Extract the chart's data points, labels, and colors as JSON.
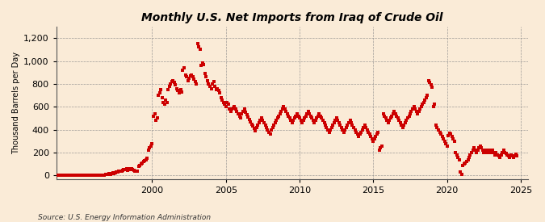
{
  "title": "Monthly U.S. Net Imports from Iraq of Crude Oil",
  "ylabel": "Thousand Barrels per Day",
  "source": "Source: U.S. Energy Information Administration",
  "background_color": "#faebd7",
  "marker_color": "#cc0000",
  "xlim": [
    1993.5,
    2025.5
  ],
  "ylim": [
    -30,
    1300
  ],
  "yticks": [
    0,
    200,
    400,
    600,
    800,
    1000,
    1200
  ],
  "xticks": [
    2000,
    2005,
    2010,
    2015,
    2020,
    2025
  ],
  "data": [
    [
      1993.08,
      0
    ],
    [
      1993.17,
      0
    ],
    [
      1993.25,
      0
    ],
    [
      1993.33,
      0
    ],
    [
      1993.42,
      0
    ],
    [
      1993.5,
      0
    ],
    [
      1993.58,
      0
    ],
    [
      1993.67,
      0
    ],
    [
      1993.75,
      0
    ],
    [
      1993.83,
      0
    ],
    [
      1993.92,
      0
    ],
    [
      1994.0,
      0
    ],
    [
      1994.08,
      0
    ],
    [
      1994.17,
      0
    ],
    [
      1994.25,
      0
    ],
    [
      1994.33,
      0
    ],
    [
      1994.42,
      0
    ],
    [
      1994.5,
      0
    ],
    [
      1994.58,
      0
    ],
    [
      1994.67,
      0
    ],
    [
      1994.75,
      0
    ],
    [
      1994.83,
      0
    ],
    [
      1994.92,
      0
    ],
    [
      1995.0,
      0
    ],
    [
      1995.08,
      0
    ],
    [
      1995.17,
      0
    ],
    [
      1995.25,
      0
    ],
    [
      1995.33,
      0
    ],
    [
      1995.42,
      0
    ],
    [
      1995.5,
      0
    ],
    [
      1995.58,
      0
    ],
    [
      1995.67,
      0
    ],
    [
      1995.75,
      0
    ],
    [
      1995.83,
      0
    ],
    [
      1995.92,
      0
    ],
    [
      1996.0,
      0
    ],
    [
      1996.08,
      0
    ],
    [
      1996.17,
      0
    ],
    [
      1996.25,
      0
    ],
    [
      1996.33,
      0
    ],
    [
      1996.42,
      0
    ],
    [
      1996.5,
      0
    ],
    [
      1996.58,
      0
    ],
    [
      1996.67,
      0
    ],
    [
      1996.75,
      5
    ],
    [
      1996.83,
      8
    ],
    [
      1996.92,
      10
    ],
    [
      1997.0,
      12
    ],
    [
      1997.08,
      15
    ],
    [
      1997.17,
      8
    ],
    [
      1997.25,
      20
    ],
    [
      1997.33,
      25
    ],
    [
      1997.42,
      18
    ],
    [
      1997.5,
      22
    ],
    [
      1997.58,
      30
    ],
    [
      1997.67,
      28
    ],
    [
      1997.75,
      35
    ],
    [
      1997.83,
      40
    ],
    [
      1997.92,
      38
    ],
    [
      1998.0,
      45
    ],
    [
      1998.08,
      50
    ],
    [
      1998.17,
      55
    ],
    [
      1998.25,
      60
    ],
    [
      1998.33,
      48
    ],
    [
      1998.42,
      52
    ],
    [
      1998.5,
      58
    ],
    [
      1998.58,
      62
    ],
    [
      1998.67,
      55
    ],
    [
      1998.75,
      48
    ],
    [
      1998.83,
      42
    ],
    [
      1998.92,
      38
    ],
    [
      1999.0,
      35
    ],
    [
      1999.08,
      80
    ],
    [
      1999.17,
      90
    ],
    [
      1999.25,
      100
    ],
    [
      1999.33,
      110
    ],
    [
      1999.42,
      120
    ],
    [
      1999.5,
      130
    ],
    [
      1999.58,
      140
    ],
    [
      1999.67,
      150
    ],
    [
      1999.75,
      220
    ],
    [
      1999.83,
      240
    ],
    [
      1999.92,
      260
    ],
    [
      2000.0,
      280
    ],
    [
      2000.08,
      520
    ],
    [
      2000.17,
      540
    ],
    [
      2000.25,
      480
    ],
    [
      2000.33,
      500
    ],
    [
      2000.42,
      700
    ],
    [
      2000.5,
      720
    ],
    [
      2000.58,
      750
    ],
    [
      2000.67,
      680
    ],
    [
      2000.75,
      640
    ],
    [
      2000.83,
      620
    ],
    [
      2000.92,
      660
    ],
    [
      2001.0,
      640
    ],
    [
      2001.08,
      750
    ],
    [
      2001.17,
      780
    ],
    [
      2001.25,
      800
    ],
    [
      2001.33,
      820
    ],
    [
      2001.42,
      830
    ],
    [
      2001.5,
      810
    ],
    [
      2001.58,
      790
    ],
    [
      2001.67,
      760
    ],
    [
      2001.75,
      740
    ],
    [
      2001.83,
      720
    ],
    [
      2001.92,
      750
    ],
    [
      2002.0,
      730
    ],
    [
      2002.08,
      920
    ],
    [
      2002.17,
      940
    ],
    [
      2002.25,
      880
    ],
    [
      2002.33,
      860
    ],
    [
      2002.42,
      830
    ],
    [
      2002.5,
      850
    ],
    [
      2002.58,
      870
    ],
    [
      2002.67,
      880
    ],
    [
      2002.75,
      860
    ],
    [
      2002.83,
      840
    ],
    [
      2002.92,
      820
    ],
    [
      2003.0,
      800
    ],
    [
      2003.08,
      1150
    ],
    [
      2003.17,
      1120
    ],
    [
      2003.25,
      1100
    ],
    [
      2003.33,
      960
    ],
    [
      2003.42,
      980
    ],
    [
      2003.5,
      970
    ],
    [
      2003.58,
      890
    ],
    [
      2003.67,
      860
    ],
    [
      2003.75,
      830
    ],
    [
      2003.83,
      800
    ],
    [
      2003.92,
      780
    ],
    [
      2004.0,
      760
    ],
    [
      2004.08,
      800
    ],
    [
      2004.17,
      820
    ],
    [
      2004.25,
      780
    ],
    [
      2004.33,
      750
    ],
    [
      2004.42,
      760
    ],
    [
      2004.5,
      740
    ],
    [
      2004.58,
      720
    ],
    [
      2004.67,
      680
    ],
    [
      2004.75,
      660
    ],
    [
      2004.83,
      640
    ],
    [
      2004.92,
      620
    ],
    [
      2005.0,
      600
    ],
    [
      2005.08,
      640
    ],
    [
      2005.17,
      620
    ],
    [
      2005.25,
      580
    ],
    [
      2005.33,
      560
    ],
    [
      2005.42,
      580
    ],
    [
      2005.5,
      590
    ],
    [
      2005.58,
      600
    ],
    [
      2005.67,
      580
    ],
    [
      2005.75,
      560
    ],
    [
      2005.83,
      540
    ],
    [
      2005.92,
      520
    ],
    [
      2006.0,
      500
    ],
    [
      2006.08,
      540
    ],
    [
      2006.17,
      560
    ],
    [
      2006.25,
      580
    ],
    [
      2006.33,
      550
    ],
    [
      2006.42,
      530
    ],
    [
      2006.5,
      510
    ],
    [
      2006.58,
      490
    ],
    [
      2006.67,
      470
    ],
    [
      2006.75,
      450
    ],
    [
      2006.83,
      430
    ],
    [
      2006.92,
      410
    ],
    [
      2007.0,
      390
    ],
    [
      2007.08,
      420
    ],
    [
      2007.17,
      440
    ],
    [
      2007.25,
      460
    ],
    [
      2007.33,
      480
    ],
    [
      2007.42,
      500
    ],
    [
      2007.5,
      480
    ],
    [
      2007.58,
      460
    ],
    [
      2007.67,
      440
    ],
    [
      2007.75,
      420
    ],
    [
      2007.83,
      400
    ],
    [
      2007.92,
      380
    ],
    [
      2008.0,
      360
    ],
    [
      2008.08,
      400
    ],
    [
      2008.17,
      420
    ],
    [
      2008.25,
      440
    ],
    [
      2008.33,
      460
    ],
    [
      2008.42,
      480
    ],
    [
      2008.5,
      500
    ],
    [
      2008.58,
      520
    ],
    [
      2008.67,
      540
    ],
    [
      2008.75,
      560
    ],
    [
      2008.83,
      580
    ],
    [
      2008.92,
      600
    ],
    [
      2009.0,
      580
    ],
    [
      2009.08,
      560
    ],
    [
      2009.17,
      540
    ],
    [
      2009.25,
      520
    ],
    [
      2009.33,
      500
    ],
    [
      2009.42,
      480
    ],
    [
      2009.5,
      460
    ],
    [
      2009.58,
      480
    ],
    [
      2009.67,
      500
    ],
    [
      2009.75,
      520
    ],
    [
      2009.83,
      540
    ],
    [
      2009.92,
      520
    ],
    [
      2010.0,
      500
    ],
    [
      2010.08,
      480
    ],
    [
      2010.17,
      460
    ],
    [
      2010.25,
      480
    ],
    [
      2010.33,
      500
    ],
    [
      2010.42,
      520
    ],
    [
      2010.5,
      540
    ],
    [
      2010.58,
      560
    ],
    [
      2010.67,
      540
    ],
    [
      2010.75,
      520
    ],
    [
      2010.83,
      500
    ],
    [
      2010.92,
      480
    ],
    [
      2011.0,
      460
    ],
    [
      2011.08,
      480
    ],
    [
      2011.17,
      500
    ],
    [
      2011.25,
      520
    ],
    [
      2011.33,
      540
    ],
    [
      2011.42,
      520
    ],
    [
      2011.5,
      500
    ],
    [
      2011.58,
      480
    ],
    [
      2011.67,
      460
    ],
    [
      2011.75,
      440
    ],
    [
      2011.83,
      420
    ],
    [
      2011.92,
      400
    ],
    [
      2012.0,
      380
    ],
    [
      2012.08,
      400
    ],
    [
      2012.17,
      420
    ],
    [
      2012.25,
      440
    ],
    [
      2012.33,
      460
    ],
    [
      2012.42,
      480
    ],
    [
      2012.5,
      500
    ],
    [
      2012.58,
      480
    ],
    [
      2012.67,
      460
    ],
    [
      2012.75,
      440
    ],
    [
      2012.83,
      420
    ],
    [
      2012.92,
      400
    ],
    [
      2013.0,
      380
    ],
    [
      2013.08,
      400
    ],
    [
      2013.17,
      420
    ],
    [
      2013.25,
      440
    ],
    [
      2013.33,
      460
    ],
    [
      2013.42,
      480
    ],
    [
      2013.5,
      460
    ],
    [
      2013.58,
      440
    ],
    [
      2013.67,
      420
    ],
    [
      2013.75,
      400
    ],
    [
      2013.83,
      380
    ],
    [
      2013.92,
      360
    ],
    [
      2014.0,
      340
    ],
    [
      2014.08,
      360
    ],
    [
      2014.17,
      380
    ],
    [
      2014.25,
      400
    ],
    [
      2014.33,
      420
    ],
    [
      2014.42,
      440
    ],
    [
      2014.5,
      420
    ],
    [
      2014.58,
      400
    ],
    [
      2014.67,
      380
    ],
    [
      2014.75,
      360
    ],
    [
      2014.83,
      340
    ],
    [
      2014.92,
      320
    ],
    [
      2015.0,
      300
    ],
    [
      2015.08,
      320
    ],
    [
      2015.17,
      340
    ],
    [
      2015.25,
      360
    ],
    [
      2015.33,
      380
    ],
    [
      2015.42,
      220
    ],
    [
      2015.5,
      240
    ],
    [
      2015.58,
      260
    ],
    [
      2015.67,
      540
    ],
    [
      2015.75,
      520
    ],
    [
      2015.83,
      500
    ],
    [
      2015.92,
      480
    ],
    [
      2016.0,
      460
    ],
    [
      2016.08,
      480
    ],
    [
      2016.17,
      500
    ],
    [
      2016.25,
      520
    ],
    [
      2016.33,
      540
    ],
    [
      2016.42,
      560
    ],
    [
      2016.5,
      540
    ],
    [
      2016.58,
      520
    ],
    [
      2016.67,
      500
    ],
    [
      2016.75,
      480
    ],
    [
      2016.83,
      460
    ],
    [
      2016.92,
      440
    ],
    [
      2017.0,
      420
    ],
    [
      2017.08,
      440
    ],
    [
      2017.17,
      460
    ],
    [
      2017.25,
      480
    ],
    [
      2017.33,
      500
    ],
    [
      2017.42,
      520
    ],
    [
      2017.5,
      540
    ],
    [
      2017.58,
      560
    ],
    [
      2017.67,
      580
    ],
    [
      2017.75,
      600
    ],
    [
      2017.83,
      580
    ],
    [
      2017.92,
      560
    ],
    [
      2018.0,
      540
    ],
    [
      2018.08,
      560
    ],
    [
      2018.17,
      580
    ],
    [
      2018.25,
      600
    ],
    [
      2018.33,
      620
    ],
    [
      2018.42,
      640
    ],
    [
      2018.5,
      660
    ],
    [
      2018.58,
      680
    ],
    [
      2018.67,
      700
    ],
    [
      2018.75,
      830
    ],
    [
      2018.83,
      810
    ],
    [
      2018.92,
      790
    ],
    [
      2019.0,
      770
    ],
    [
      2019.08,
      600
    ],
    [
      2019.17,
      620
    ],
    [
      2019.25,
      440
    ],
    [
      2019.33,
      420
    ],
    [
      2019.42,
      400
    ],
    [
      2019.5,
      380
    ],
    [
      2019.58,
      360
    ],
    [
      2019.67,
      340
    ],
    [
      2019.75,
      320
    ],
    [
      2019.83,
      300
    ],
    [
      2019.92,
      280
    ],
    [
      2020.0,
      260
    ],
    [
      2020.08,
      350
    ],
    [
      2020.17,
      370
    ],
    [
      2020.25,
      360
    ],
    [
      2020.33,
      340
    ],
    [
      2020.42,
      320
    ],
    [
      2020.5,
      300
    ],
    [
      2020.58,
      200
    ],
    [
      2020.67,
      180
    ],
    [
      2020.75,
      160
    ],
    [
      2020.83,
      140
    ],
    [
      2020.92,
      30
    ],
    [
      2021.0,
      10
    ],
    [
      2021.08,
      90
    ],
    [
      2021.17,
      100
    ],
    [
      2021.25,
      110
    ],
    [
      2021.33,
      120
    ],
    [
      2021.42,
      140
    ],
    [
      2021.5,
      160
    ],
    [
      2021.58,
      180
    ],
    [
      2021.67,
      200
    ],
    [
      2021.75,
      220
    ],
    [
      2021.83,
      240
    ],
    [
      2021.92,
      220
    ],
    [
      2022.0,
      200
    ],
    [
      2022.08,
      220
    ],
    [
      2022.17,
      240
    ],
    [
      2022.25,
      260
    ],
    [
      2022.33,
      240
    ],
    [
      2022.42,
      220
    ],
    [
      2022.5,
      200
    ],
    [
      2022.58,
      220
    ],
    [
      2022.67,
      200
    ],
    [
      2022.75,
      220
    ],
    [
      2022.83,
      200
    ],
    [
      2022.92,
      220
    ],
    [
      2023.0,
      200
    ],
    [
      2023.08,
      220
    ],
    [
      2023.17,
      200
    ],
    [
      2023.25,
      180
    ],
    [
      2023.33,
      200
    ],
    [
      2023.42,
      180
    ],
    [
      2023.5,
      170
    ],
    [
      2023.58,
      160
    ],
    [
      2023.67,
      180
    ],
    [
      2023.75,
      200
    ],
    [
      2023.83,
      220
    ],
    [
      2023.92,
      200
    ],
    [
      2024.0,
      190
    ],
    [
      2024.08,
      180
    ],
    [
      2024.17,
      170
    ],
    [
      2024.25,
      160
    ],
    [
      2024.33,
      180
    ],
    [
      2024.42,
      170
    ],
    [
      2024.5,
      160
    ],
    [
      2024.58,
      175
    ],
    [
      2024.67,
      185
    ],
    [
      2024.75,
      175
    ]
  ]
}
